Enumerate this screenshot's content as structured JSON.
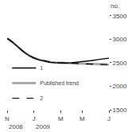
{
  "chart_data": {
    "type": "line",
    "ylabel": "no.",
    "categories": [
      "N",
      null,
      null,
      null,
      null,
      "J",
      null,
      null,
      null,
      null,
      "M",
      null,
      null,
      null,
      "M",
      null,
      null,
      null,
      null,
      "J"
    ],
    "series": [
      {
        "name": "1",
        "color": "#000000",
        "line_style": "solid",
        "values": [
          3020,
          2940,
          2840,
          2740,
          2660,
          2600,
          2560,
          2530,
          2510,
          2500,
          2495,
          2495,
          2500,
          2510,
          2520,
          2535,
          2550,
          2570,
          2585,
          2600
        ]
      },
      {
        "name": "Published trend",
        "color": "#aaaaaa",
        "line_style": "solid",
        "values": [
          3020,
          2940,
          2840,
          2740,
          2660,
          2605,
          2565,
          2535,
          2515,
          2505,
          2498,
          2492,
          2488,
          2484,
          2480,
          2476,
          2472,
          2468,
          2464,
          2460
        ]
      },
      {
        "name": "2",
        "color": "#000000",
        "line_style": "dashed",
        "values": [
          3020,
          2940,
          2840,
          2740,
          2660,
          2605,
          2565,
          2535,
          2515,
          2505,
          2498,
          2492,
          2488,
          2484,
          2480,
          2476,
          2472,
          2468,
          2464,
          2460
        ]
      }
    ],
    "ylim": [
      1500,
      3600
    ],
    "yticks": [
      1500,
      2000,
      2500,
      3000,
      3500
    ],
    "grid": false,
    "legend": "lower left",
    "annotations": [
      {
        "text": "2008",
        "x": 0
      },
      {
        "text": "2009",
        "x": 5
      }
    ]
  }
}
